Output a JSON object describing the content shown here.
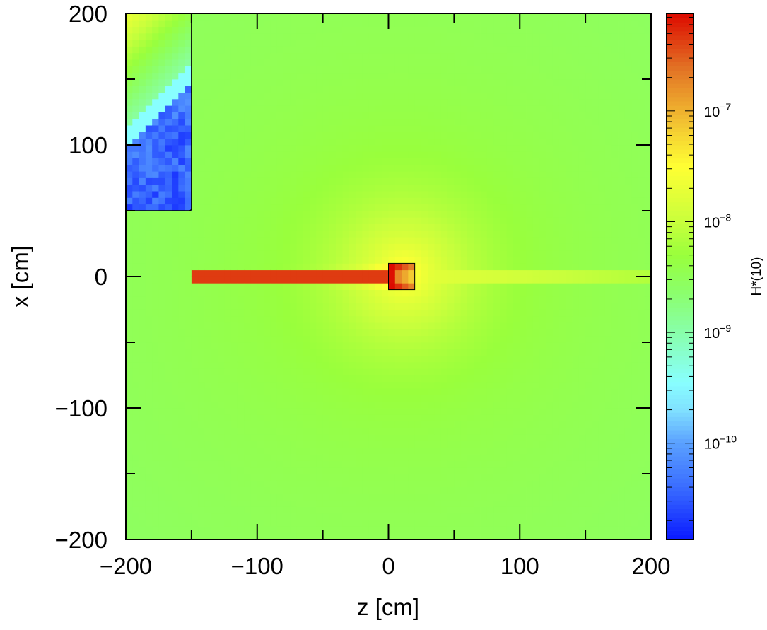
{
  "chart_data": {
    "type": "heatmap",
    "title": "",
    "xlabel": "z [cm]",
    "ylabel": "x [cm]",
    "colorbar_label": "H*(10)",
    "xlim": [
      -200,
      200
    ],
    "ylim": [
      -200,
      200
    ],
    "cell_size_cm": 5,
    "x_ticks": [
      -200,
      -100,
      0,
      100,
      200
    ],
    "y_ticks": [
      -200,
      -100,
      0,
      100,
      200
    ],
    "x_tick_labels": [
      "−200",
      "−100",
      "0",
      "100",
      "200"
    ],
    "y_tick_labels": [
      "−200",
      "−100",
      "0",
      "100",
      "200"
    ],
    "minor_tick_step": 50,
    "color_scale": "log",
    "color_log10_range": [
      -10.87,
      -6.12
    ],
    "colorbar_ticks": [
      {
        "log10": -7,
        "base": "10",
        "exp": "−7"
      },
      {
        "log10": -8,
        "base": "10",
        "exp": "−8"
      },
      {
        "log10": -9,
        "base": "10",
        "exp": "−9"
      },
      {
        "log10": -10,
        "base": "10",
        "exp": "−10"
      }
    ],
    "colormap": [
      [
        -10.87,
        "#0a1aff"
      ],
      [
        -10.4,
        "#3a6cff"
      ],
      [
        -10.0,
        "#5aa0ff"
      ],
      [
        -9.7,
        "#80e0ff"
      ],
      [
        -9.45,
        "#88ffff"
      ],
      [
        -9.0,
        "#88ffaa"
      ],
      [
        -8.6,
        "#8cff66"
      ],
      [
        -8.3,
        "#99ff3c"
      ],
      [
        -8.0,
        "#c8ff3c"
      ],
      [
        -7.5,
        "#ffff33"
      ],
      [
        -7.1,
        "#f2c232"
      ],
      [
        -6.6,
        "#e27024"
      ],
      [
        -6.12,
        "#dd0a00"
      ]
    ],
    "field_model": {
      "background_log10": -8.33,
      "background_far_drop_per_100cm": -0.08,
      "source_center": [
        10,
        0
      ],
      "source_peak_log10_boost": 1.0,
      "source_decay_cm": 40,
      "beam_pipe": {
        "z_range": [
          -150,
          0
        ],
        "x_range": [
          -5,
          5
        ],
        "log10": -6.35
      },
      "target_box": {
        "z_range": [
          0,
          20
        ],
        "x_range": [
          -10,
          10
        ],
        "log10_by_z_bin": [
          -6.15,
          -6.75,
          -6.95,
          -7.15
        ]
      },
      "downstream_streak": {
        "z_range": [
          20,
          200
        ],
        "x_range": [
          -5,
          5
        ],
        "log10_start": -7.75,
        "log10_end": -8.15
      },
      "shielded_region": {
        "z_range": [
          -200,
          -150
        ],
        "x_range": [
          50,
          200
        ],
        "log10_bottom": -10.45,
        "log10_top": -9.85,
        "noise": 0.25
      }
    }
  }
}
